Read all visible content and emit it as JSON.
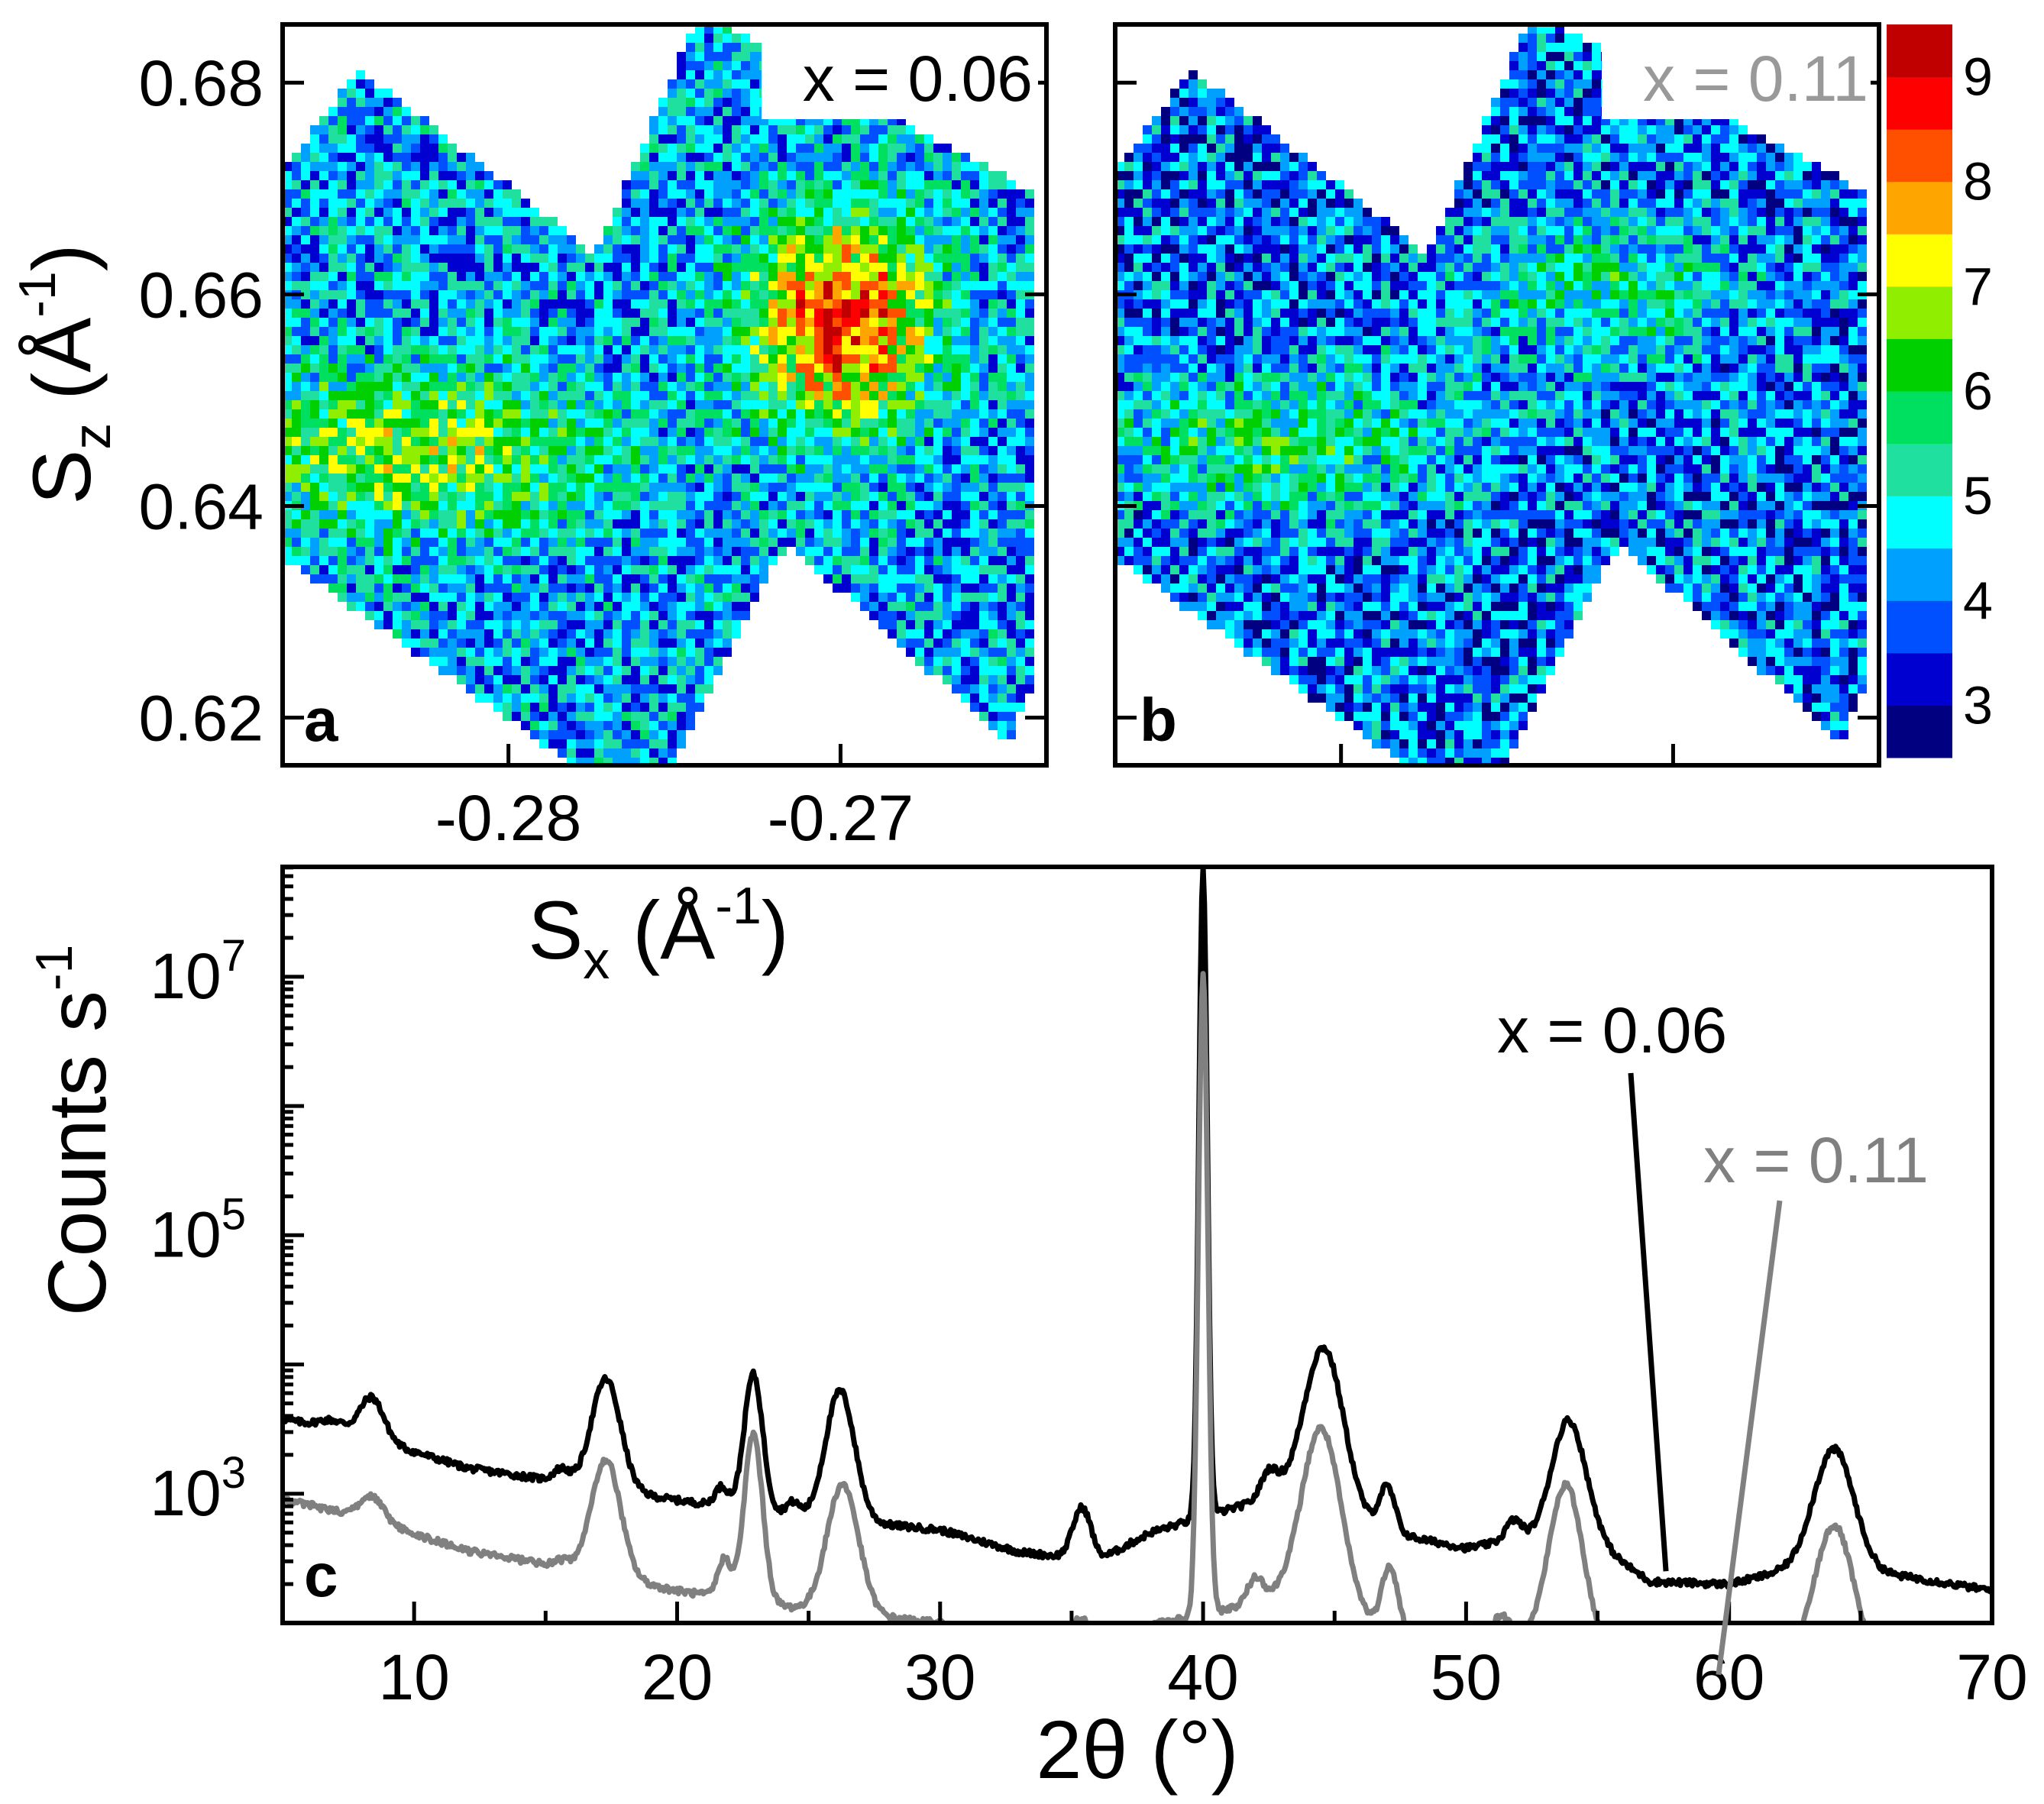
{
  "chart_data": [
    {
      "id": "a",
      "type": "heatmap",
      "panel_label": "a",
      "annotation": "x = 0.06",
      "xlabel_main": "S",
      "xlabel_sub": "x",
      "xlabel_unit_pre": " (Å",
      "xlabel_sup": "-1",
      "xlabel_unit_post": ")",
      "ylabel_main": "S",
      "ylabel_sub": "z",
      "ylabel_unit_pre": " (Å",
      "ylabel_sup": "-1",
      "ylabel_unit_post": ")",
      "xlim": [
        -0.2868,
        -0.2638
      ],
      "ylim": [
        0.6155,
        0.6855
      ],
      "x_ticks": [
        -0.28,
        -0.27
      ],
      "x_tick_labels": [
        "-0.28",
        "-0.27"
      ],
      "y_ticks": [
        0.62,
        0.64,
        0.66,
        0.68
      ],
      "y_tick_labels": [
        "0.62",
        "0.64",
        "0.66",
        "0.68"
      ],
      "hotspots": [
        {
          "x": -0.27,
          "y": 0.6575,
          "peak": 8.6,
          "sx": 0.002,
          "sy": 0.007
        },
        {
          "x": -0.283,
          "y": 0.645,
          "peak": 6.6,
          "sx": 0.004,
          "sy": 0.0055
        }
      ],
      "background_level": 4.3
    },
    {
      "id": "b",
      "type": "heatmap",
      "panel_label": "b",
      "annotation": "x = 0.11",
      "hotspots": [
        {
          "x": -0.272,
          "y": 0.66,
          "peak": 5.4,
          "sx": 0.003,
          "sy": 0.005
        },
        {
          "x": -0.282,
          "y": 0.646,
          "peak": 5.6,
          "sx": 0.004,
          "sy": 0.005
        }
      ],
      "background_level": 3.9
    },
    {
      "id": "colorbar",
      "type": "colorbar",
      "tick_labels": [
        "3",
        "4",
        "5",
        "6",
        "7",
        "8",
        "9"
      ],
      "range": [
        2.5,
        9.5
      ],
      "colors": [
        "#000080",
        "#0000d0",
        "#0050ff",
        "#00a0ff",
        "#00ffff",
        "#20e0a0",
        "#00e060",
        "#00d000",
        "#90ee00",
        "#ffff00",
        "#ffa500",
        "#ff5000",
        "#ff0000",
        "#c00000"
      ]
    },
    {
      "id": "c",
      "type": "line",
      "panel_label": "c",
      "xlabel": "2θ (°)",
      "ylabel_main": "Counts s",
      "ylabel_sup": "-1",
      "xlim": [
        5,
        70
      ],
      "ylog": true,
      "ylim_log10": [
        2.0,
        7.85
      ],
      "x_ticks": [
        10,
        20,
        30,
        40,
        50,
        60,
        70
      ],
      "x_tick_labels": [
        "10",
        "20",
        "30",
        "40",
        "50",
        "60",
        "70"
      ],
      "y_ticks_log10": [
        3,
        5,
        7
      ],
      "y_tick_bases": [
        "10",
        "10",
        "10"
      ],
      "y_tick_exps": [
        "3",
        "5",
        "7"
      ],
      "series": [
        {
          "name": "x = 0.06",
          "color": "#000000",
          "baseline": [
            [
              5,
              3.58
            ],
            [
              8,
              3.45
            ],
            [
              12,
              3.2
            ],
            [
              16,
              3.08
            ],
            [
              20,
              2.95
            ],
            [
              25,
              2.82
            ],
            [
              30,
              2.72
            ],
            [
              33,
              2.55
            ],
            [
              36,
              2.48
            ],
            [
              38,
              2.7
            ],
            [
              43,
              3.0
            ],
            [
              47,
              2.7
            ],
            [
              50,
              2.58
            ],
            [
              52,
              2.65
            ],
            [
              55,
              2.6
            ],
            [
              57,
              2.32
            ],
            [
              60,
              2.3
            ],
            [
              63,
              2.45
            ],
            [
              67,
              2.35
            ],
            [
              70,
              2.25
            ]
          ],
          "peaks": [
            [
              6.9,
              0.07,
              0.5
            ],
            [
              8.4,
              0.32,
              0.45
            ],
            [
              15.6,
              0.1,
              0.3
            ],
            [
              17.3,
              0.85,
              0.55
            ],
            [
              21.7,
              0.15,
              0.25
            ],
            [
              22.9,
              1.05,
              0.35
            ],
            [
              24.4,
              0.1,
              0.25
            ],
            [
              26.2,
              1.0,
              0.55
            ],
            [
              35.4,
              0.4,
              0.35
            ],
            [
              40.0,
              5.0,
              0.16
            ],
            [
              42.5,
              0.2,
              0.3
            ],
            [
              44.6,
              1.25,
              0.75
            ],
            [
              47.0,
              0.35,
              0.3
            ],
            [
              51.8,
              0.15,
              0.3
            ],
            [
              53.9,
              0.95,
              0.65
            ],
            [
              64.0,
              0.92,
              0.75
            ]
          ]
        },
        {
          "name": "x = 0.11",
          "color": "#808080",
          "baseline": [
            [
              5,
              2.96
            ],
            [
              8,
              2.82
            ],
            [
              12,
              2.56
            ],
            [
              16,
              2.42
            ],
            [
              20,
              2.25
            ],
            [
              25,
              2.1
            ],
            [
              30,
              2.0
            ],
            [
              33,
              1.88
            ],
            [
              36,
              1.78
            ],
            [
              38,
              1.98
            ],
            [
              43,
              2.2
            ],
            [
              47,
              1.95
            ],
            [
              50,
              1.82
            ],
            [
              52,
              1.88
            ],
            [
              55,
              1.78
            ],
            [
              57,
              1.65
            ],
            [
              60,
              1.6
            ],
            [
              63,
              1.68
            ],
            [
              67,
              1.58
            ],
            [
              70,
              1.55
            ]
          ],
          "peaks": [
            [
              8.4,
              0.18,
              0.45
            ],
            [
              15.6,
              0.05,
              0.3
            ],
            [
              17.3,
              0.9,
              0.55
            ],
            [
              21.8,
              0.3,
              0.25
            ],
            [
              22.9,
              1.3,
              0.35
            ],
            [
              26.3,
              1.0,
              0.6
            ],
            [
              35.4,
              0.25,
              0.35
            ],
            [
              40.0,
              4.95,
              0.18
            ],
            [
              42.0,
              0.2,
              0.3
            ],
            [
              44.5,
              1.4,
              0.75
            ],
            [
              47.1,
              0.5,
              0.3
            ],
            [
              51.3,
              0.2,
              0.35
            ],
            [
              53.8,
              1.25,
              0.65
            ],
            [
              64.0,
              1.1,
              0.75
            ]
          ]
        }
      ],
      "annotations": [
        {
          "text": "x = 0.06",
          "color": "#000000",
          "target": [
            57.6,
            2.4
          ]
        },
        {
          "text": "x = 0.11",
          "color": "#808080",
          "target": [
            59.6,
            1.6
          ]
        }
      ]
    }
  ]
}
